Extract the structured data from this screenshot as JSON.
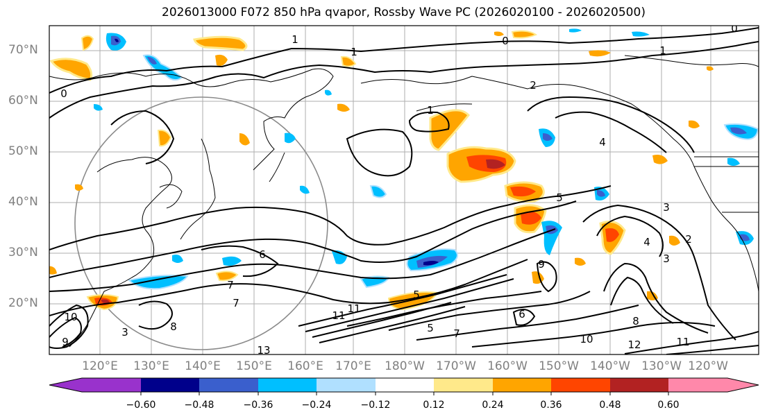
{
  "title": "2026013000 F072 850 hPa qvapor, Rossby Wave PC (2026020100 - 2026020500)",
  "lat_ticks": [
    "70°N",
    "60°N",
    "50°N",
    "40°N",
    "30°N",
    "20°N"
  ],
  "lon_ticks": [
    "120°E",
    "130°E",
    "140°E",
    "150°E",
    "160°E",
    "170°E",
    "180°W",
    "170°W",
    "160°W",
    "150°W",
    "140°W",
    "130°W",
    "120°W"
  ],
  "colorbar": {
    "ticks": [
      "−0.60",
      "−0.48",
      "−0.36",
      "−0.24",
      "−0.12",
      "0.12",
      "0.24",
      "0.36",
      "0.48",
      "0.60"
    ],
    "colors": [
      "#9932CC",
      "#00008B",
      "#3A5FCD",
      "#00BFFF",
      "#B0E0FF",
      "#FFFFFF",
      "#FFE98A",
      "#FFA500",
      "#FF4500",
      "#B22222",
      "#FF88AA"
    ]
  },
  "contour_labels": [
    "1",
    "0",
    "1",
    "1",
    "2",
    "0",
    "1",
    "0",
    "4",
    "5",
    "3",
    "4",
    "3",
    "2",
    "6",
    "7",
    "9",
    "10",
    "12",
    "11",
    "8",
    "6",
    "5",
    "7",
    "3",
    "5",
    "11",
    "10",
    "9",
    "8",
    "7",
    "13",
    "11"
  ]
}
